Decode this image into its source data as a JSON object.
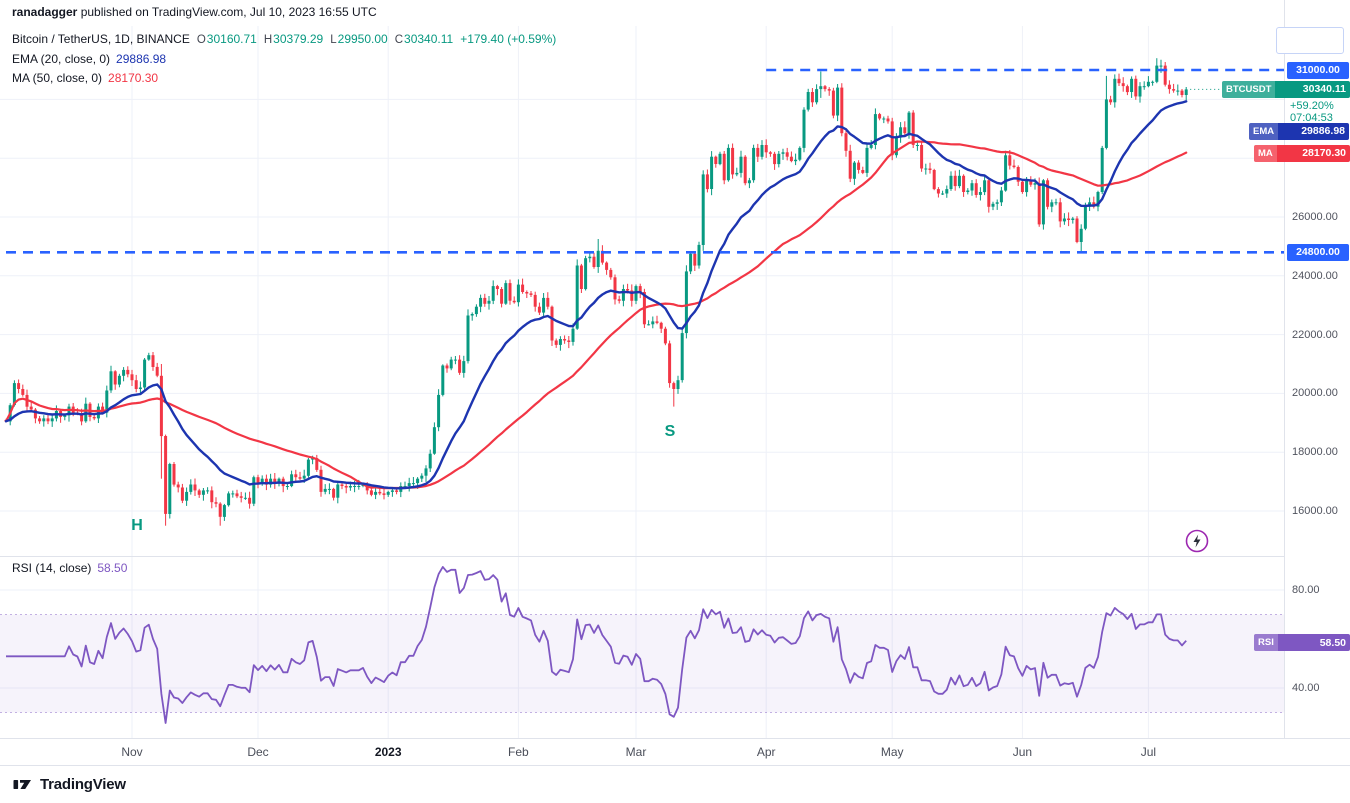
{
  "attribution": {
    "author": "ranadagger",
    "rest": " published on TradingView.com, Jul 10, 2023 16:55 UTC"
  },
  "legend": {
    "title": "Bitcoin / TetherUS, 1D, BINANCE",
    "ohlc": [
      {
        "k": "O",
        "v": "30160.71"
      },
      {
        "k": "H",
        "v": "30379.29"
      },
      {
        "k": "L",
        "v": "29950.00"
      },
      {
        "k": "C",
        "v": "30340.11"
      }
    ],
    "change": "+179.40 (+0.59%)",
    "ema_label": "EMA (20, close, 0)",
    "ema_value": "29886.98",
    "ma_label": "MA (50, close, 0)",
    "ma_value": "28170.30",
    "rsi_label": "RSI (14, close)",
    "rsi_value": "58.50"
  },
  "axis_badges": {
    "level_top": "31000.00",
    "symbol_tag": "BTCUSDT",
    "last_price": "30340.11",
    "change_pct": "+59.20%",
    "countdown": "07:04:53",
    "ema_tag": "EMA",
    "ema_value": "29886.98",
    "ma_tag": "MA",
    "ma_value": "28170.30",
    "level_bottom": "24800.00",
    "rsi_tag": "RSI",
    "rsi_value": "58.50"
  },
  "annotations": [
    {
      "text": "H",
      "index": 31,
      "price": 15700
    },
    {
      "text": "S",
      "index": 158,
      "price": 18900
    }
  ],
  "footer": {
    "brand": "TradingView"
  },
  "colors": {
    "up": "#089981",
    "down": "#f23645",
    "ema": "#1d35b0",
    "ma": "#f23645",
    "level": "#2962ff",
    "rsi": "#7e57c2",
    "grid": "#eef1f8",
    "band_fill": "rgba(126,87,194,0.07)",
    "band_line": "rgba(126,87,194,0.45)",
    "text": "#131722",
    "muted": "#787b86",
    "axis_text": "#50535e",
    "separator": "#e0e3eb"
  },
  "chart_data": {
    "type": "candlestick",
    "symbol": "Bitcoin / TetherUS",
    "ticker": "BTCUSDT",
    "interval": "1D",
    "exchange": "BINANCE",
    "last_ohlc": {
      "open": 30160.71,
      "high": 30379.29,
      "low": 29950.0,
      "close": 30340.11,
      "change": "+179.40 (+0.59%)"
    },
    "last_price": 30340.11,
    "first_open": 19100,
    "closes": [
      19050,
      19600,
      20350,
      20150,
      19950,
      19550,
      19450,
      19150,
      19050,
      19150,
      19050,
      19150,
      19400,
      19200,
      19250,
      19550,
      19350,
      19300,
      19050,
      19650,
      19200,
      19150,
      19550,
      19350,
      20100,
      20750,
      20300,
      20600,
      20800,
      20650,
      20450,
      20150,
      20200,
      21150,
      21300,
      20900,
      20600,
      18550,
      15900,
      17600,
      16900,
      16800,
      16350,
      16650,
      16900,
      16700,
      16550,
      16700,
      16700,
      16300,
      16250,
      15800,
      16200,
      16600,
      16600,
      16500,
      16450,
      16450,
      16250,
      17150,
      16950,
      17100,
      16900,
      17100,
      16950,
      17100,
      16850,
      16850,
      17250,
      17150,
      17100,
      17200,
      17750,
      17800,
      17400,
      16650,
      16750,
      16750,
      16450,
      16900,
      16850,
      16800,
      16850,
      16850,
      16850,
      16900,
      16700,
      16550,
      16650,
      16600,
      16550,
      16650,
      16700,
      16650,
      16850,
      16850,
      16950,
      16950,
      17100,
      17200,
      17450,
      17950,
      18850,
      19950,
      20950,
      20850,
      21150,
      21150,
      20700,
      21100,
      22650,
      22700,
      22950,
      23250,
      23050,
      23150,
      23650,
      23550,
      23050,
      23750,
      23150,
      23100,
      23700,
      23450,
      23400,
      23350,
      22950,
      22750,
      23250,
      22950,
      21800,
      21650,
      21850,
      21800,
      21750,
      22200,
      24350,
      23550,
      24600,
      24650,
      24300,
      24850,
      24450,
      24200,
      23950,
      23200,
      23150,
      23550,
      23500,
      23150,
      23650,
      23450,
      22350,
      22350,
      22450,
      22400,
      22200,
      21700,
      20350,
      20150,
      20450,
      22050,
      24150,
      24750,
      24350,
      25050,
      27450,
      26950,
      28050,
      27800,
      28150,
      27250,
      28350,
      27450,
      27500,
      28050,
      27150,
      27250,
      28350,
      28050,
      28450,
      28200,
      28150,
      27800,
      28150,
      28200,
      28050,
      27900,
      27950,
      28350,
      29650,
      30250,
      29900,
      30350,
      30450,
      30350,
      30300,
      29450,
      30400,
      28850,
      28250,
      27300,
      27850,
      27600,
      27500,
      28350,
      28450,
      29500,
      29350,
      29350,
      29250,
      28100,
      28700,
      29050,
      28850,
      29550,
      28450,
      28450,
      27650,
      27650,
      27600,
      26950,
      26800,
      26800,
      26950,
      27400,
      27050,
      27400,
      26850,
      26900,
      27150,
      26750,
      26850,
      27250,
      26350,
      26450,
      26500,
      26900,
      28100,
      27750,
      27700,
      27200,
      26850,
      27250,
      27100,
      27150,
      25750,
      27250,
      26350,
      26500,
      26500,
      25850,
      25950,
      25900,
      25950,
      25150,
      25600,
      26350,
      26500,
      26350,
      26850,
      28350,
      30000,
      29900,
      30700,
      30550,
      30450,
      30250,
      30700,
      30100,
      30450,
      30450,
      30600,
      30600,
      31150,
      31150,
      30500,
      30350,
      30300,
      30300,
      30150,
      30340
    ],
    "hl_overrides": {
      "37": [
        21000,
        17100
      ],
      "38": [
        18600,
        15500
      ],
      "51": [
        16300,
        15500
      ],
      "141": [
        25250,
        24100
      ],
      "159": [
        20400,
        19550
      ],
      "194": [
        30950,
        30050
      ],
      "256": [
        25750,
        24800
      ],
      "262": [
        30800,
        28300
      ],
      "274": [
        31400,
        30550
      ],
      "275": [
        31350,
        30900
      ]
    },
    "overlays": [
      {
        "name": "EMA",
        "period": 20,
        "last": 29886.98
      },
      {
        "name": "MA",
        "period": 50,
        "last": 28170.3
      }
    ],
    "levels": [
      {
        "price": 31000,
        "label": "31000.00",
        "start_index": 181
      },
      {
        "price": 24800,
        "label": "24800.00",
        "start_index": 0
      }
    ],
    "price_axis_ticks": [
      {
        "price": 26000,
        "label": "26000.00"
      },
      {
        "price": 24000,
        "label": "24000.00"
      },
      {
        "price": 22000,
        "label": "22000.00"
      },
      {
        "price": 20000,
        "label": "20000.00"
      },
      {
        "price": 18000,
        "label": "18000.00"
      },
      {
        "price": 16000,
        "label": "16000.00"
      }
    ],
    "price_gridlines": [
      16000,
      18000,
      20000,
      22000,
      24000,
      26000,
      28000,
      30000
    ],
    "rsi": {
      "period": 14,
      "last": 58.5,
      "upper_band": 70,
      "lower_band": 30,
      "ticks": [
        {
          "value": 80,
          "label": "80.00"
        },
        {
          "value": 40,
          "label": "40.00"
        }
      ]
    },
    "month_ticks": [
      {
        "label": "Nov",
        "index": 30
      },
      {
        "label": "Dec",
        "index": 60
      },
      {
        "label": "2023",
        "index": 91,
        "strong": true
      },
      {
        "label": "Feb",
        "index": 122
      },
      {
        "label": "Mar",
        "index": 150
      },
      {
        "label": "Apr",
        "index": 181
      },
      {
        "label": "May",
        "index": 211
      },
      {
        "label": "Jun",
        "index": 242
      },
      {
        "label": "Jul",
        "index": 272
      }
    ]
  }
}
